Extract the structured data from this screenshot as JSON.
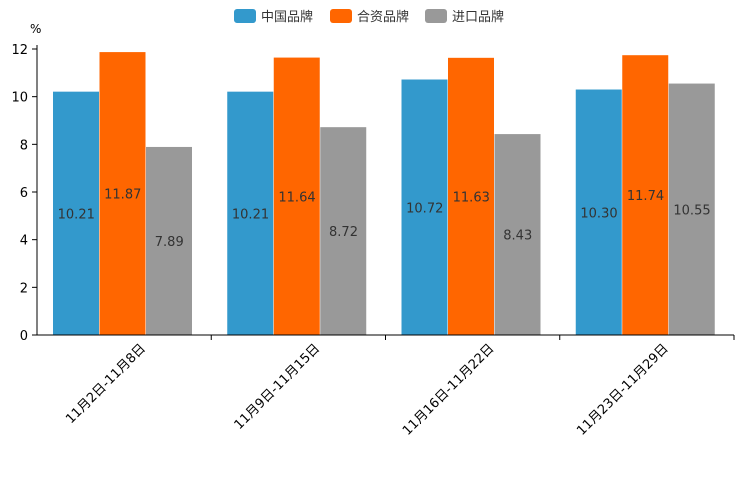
{
  "chart_data": {
    "type": "bar",
    "unit": "%",
    "ylim": [
      0,
      12
    ],
    "yticks": [
      0,
      2,
      4,
      6,
      8,
      10,
      12
    ],
    "categories": [
      "11月2日-11月8日",
      "11月9日-11月15日",
      "11月16日-11月22日",
      "11月23日-11月29日"
    ],
    "series": [
      {
        "name": "中国品牌",
        "color": "#3399CC",
        "values": [
          10.21,
          10.21,
          10.72,
          10.3
        ],
        "labels": [
          "10.21",
          "10.21",
          "10.72",
          "10.30"
        ]
      },
      {
        "name": "合资品牌",
        "color": "#FF6600",
        "values": [
          11.87,
          11.64,
          11.63,
          11.74
        ],
        "labels": [
          "11.87",
          "11.64",
          "11.63",
          "11.74"
        ]
      },
      {
        "name": "进口品牌",
        "color": "#999999",
        "values": [
          7.89,
          8.72,
          8.43,
          10.55
        ],
        "labels": [
          "7.89",
          "8.72",
          "8.43",
          "10.55"
        ]
      }
    ],
    "legend_position": "top-center",
    "grid": false
  }
}
